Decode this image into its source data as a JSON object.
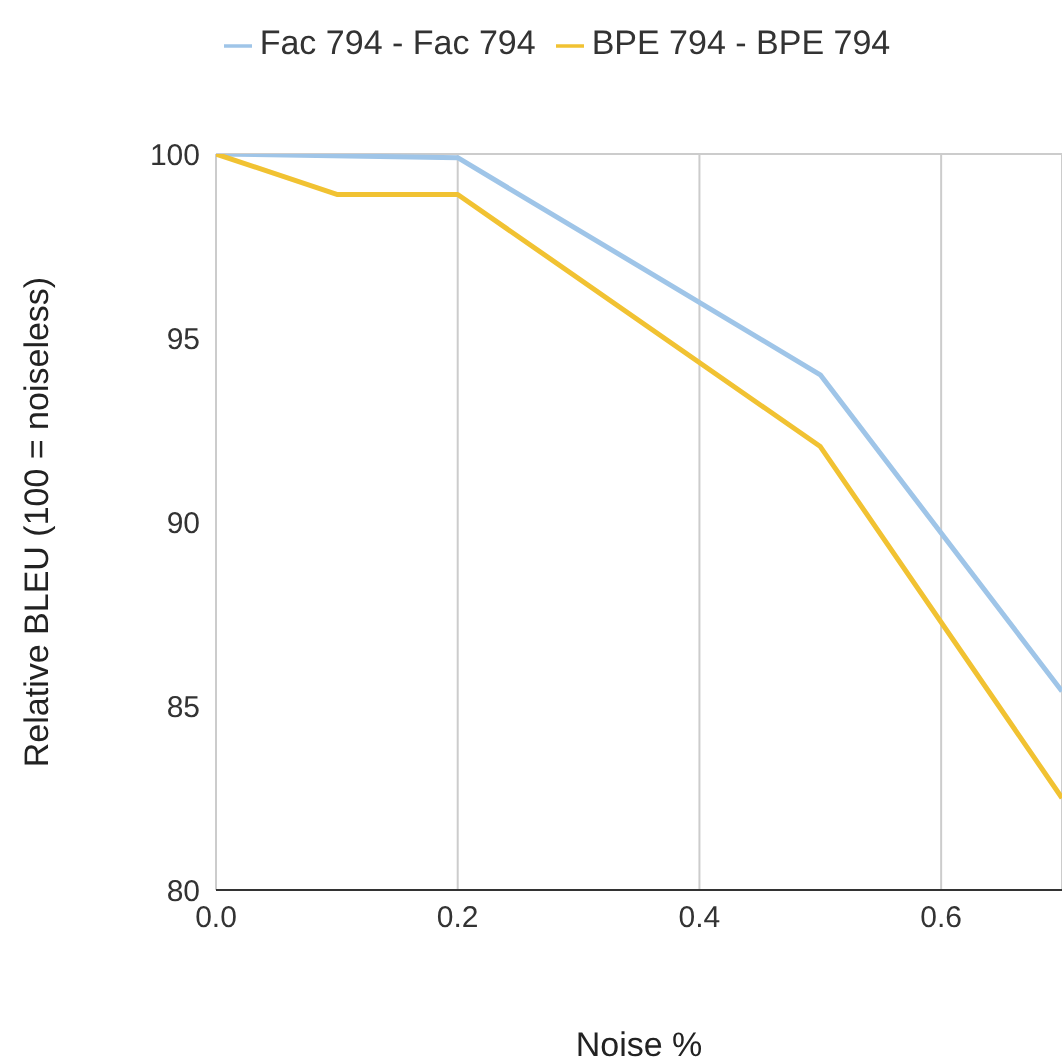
{
  "chart_data": {
    "type": "line",
    "xlabel": "Noise %",
    "ylabel": "Relative BLEU (100 = noiseless)",
    "xlim": [
      0,
      0.7
    ],
    "xticks": [
      {
        "value": 0,
        "label": "0.0"
      },
      0.2,
      0.4,
      0.6
    ],
    "ylim": [
      80,
      100
    ],
    "yticks": [
      80,
      85,
      90,
      95,
      100
    ],
    "grid": true,
    "legend": "top",
    "marker": "none",
    "series": [
      {
        "name": "Fac 794 - Fac 794",
        "color": "#9fc5e8",
        "x": [
          0,
          0.2,
          0.5,
          0.7
        ],
        "values": [
          100,
          99.9,
          94.0,
          85.4
        ]
      },
      {
        "name": "BPE 794 - BPE 794",
        "color": "#f1c232",
        "x": [
          0,
          0.1,
          0.2,
          0.5,
          0.7
        ],
        "values": [
          100,
          98.9,
          98.9,
          92.05,
          82.5
        ]
      }
    ]
  }
}
